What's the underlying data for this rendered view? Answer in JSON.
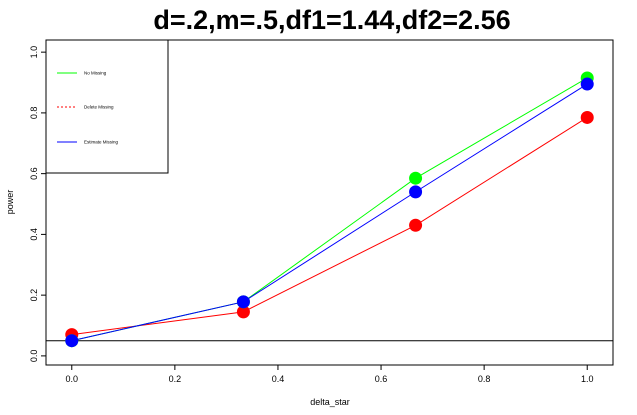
{
  "chart_data": {
    "type": "line",
    "title": "d=.2,m=.5,df1=1.44,df2=2.56",
    "xlabel": "delta_star",
    "ylabel": "power",
    "xlim": [
      -0.05,
      1.05
    ],
    "ylim": [
      -0.03,
      1.04
    ],
    "x_ticks": [
      "0.0",
      "0.2",
      "0.4",
      "0.6",
      "0.8",
      "1.0"
    ],
    "y_ticks": [
      "0.0",
      "0.2",
      "0.4",
      "0.6",
      "0.8",
      "1.0"
    ],
    "x": [
      0.0,
      0.333,
      0.667,
      1.0
    ],
    "series": [
      {
        "name": "No Missing",
        "color": "#00ff00",
        "line_style": "solid",
        "values": [
          0.05,
          0.178,
          0.585,
          0.915
        ]
      },
      {
        "name": "Delete Missing",
        "color": "#ff0000",
        "line_style": "dashed",
        "values": [
          0.07,
          0.145,
          0.43,
          0.785
        ]
      },
      {
        "name": "Estimate Missing",
        "color": "#0000ff",
        "line_style": "solid",
        "values": [
          0.05,
          0.178,
          0.54,
          0.895
        ]
      }
    ],
    "reference_line_y": 0.05,
    "grid": false,
    "legend_position": "top-left"
  }
}
